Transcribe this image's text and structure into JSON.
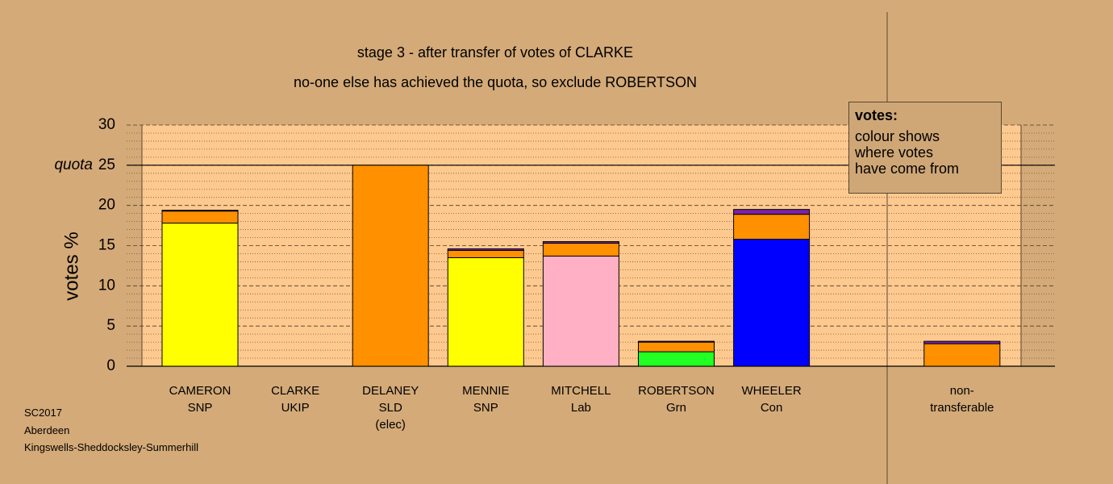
{
  "chart_data": {
    "type": "stacked-bar",
    "title": "stage 3 - after transfer of votes of CLARKE",
    "subtitle": "no-one else has achieved the quota, so exclude ROBERTSON",
    "y_label": "votes %",
    "categories": [
      "CAMERON\nSNP",
      "CLARKE\nUKIP",
      "DELANEY\nSLD\n(elec)",
      "MENNIE\nSNP",
      "MITCHELL\nLab",
      "ROBERTSON\nGrn",
      "WHEELER\nCon",
      null,
      "non-\ntransferable"
    ],
    "series": [
      {
        "color": "#ffff00",
        "values": [
          17.8,
          null,
          null,
          13.5,
          null,
          null,
          null,
          null,
          null
        ]
      },
      {
        "color": "#ffb0c4",
        "values": [
          null,
          null,
          null,
          null,
          13.7,
          null,
          null,
          null,
          null
        ]
      },
      {
        "color": "#22ff22",
        "values": [
          null,
          null,
          null,
          null,
          null,
          1.8,
          null,
          null,
          null
        ]
      },
      {
        "color": "#0000ff",
        "values": [
          null,
          null,
          null,
          null,
          null,
          null,
          15.8,
          null,
          null
        ]
      },
      {
        "color": "#ff9000",
        "values": [
          1.5,
          null,
          25,
          0.9,
          1.6,
          1.2,
          3.1,
          null,
          2.8
        ]
      },
      {
        "color": "#7a22a6",
        "values": [
          0.1,
          null,
          null,
          0.2,
          0.2,
          0.1,
          0.6,
          null,
          0.3
        ]
      }
    ],
    "ylim": [
      0,
      30
    ],
    "yticks": [
      0,
      5,
      10,
      15,
      20,
      25,
      30
    ],
    "minor_yticks": [
      1,
      2,
      3,
      4,
      6,
      7,
      8,
      9,
      11,
      12,
      13,
      14,
      16,
      17,
      18,
      19,
      21,
      22,
      23,
      24,
      26,
      27,
      28,
      29
    ],
    "quota": 25,
    "quota_label": "quota",
    "legend_title": "votes:",
    "legend_text": "colour shows\nwhere votes\nhave come from",
    "footer": [
      "SC2017",
      "Aberdeen",
      "Kingswells-Sheddocksley-Summerhill"
    ]
  }
}
